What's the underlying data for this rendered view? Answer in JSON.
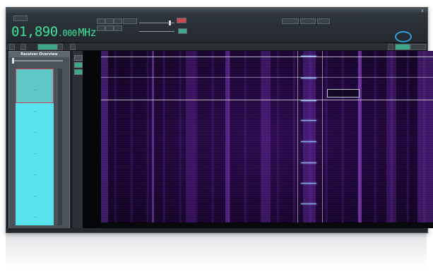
{
  "window": {
    "title": "",
    "close_glyph": "x"
  },
  "frequency": {
    "main": "01,890",
    "fine": ".000",
    "unit": "MHz"
  },
  "toolbar": {
    "buttons": [
      "",
      "",
      "",
      "",
      "",
      "",
      ""
    ]
  },
  "tabs": [
    {
      "label": "",
      "active": false
    },
    {
      "label": "",
      "active": false
    },
    {
      "label": "",
      "active": true
    },
    {
      "label": "",
      "active": false
    },
    {
      "label": "",
      "active": false
    }
  ],
  "right_tabs": [
    {
      "label": "",
      "active": false
    },
    {
      "label": "",
      "active": true
    },
    {
      "label": "",
      "active": false
    }
  ],
  "left_panel": {
    "header": "Receiver Overview"
  },
  "colors": {
    "accent": "#3fa88a",
    "freq_text": "#3de29a",
    "meter_fill": "#58e3ee",
    "meter_top": "#5fc7c5",
    "waterfall_bg": "#1a0630",
    "waterfall_signal": "#8a3be0",
    "marker": "#7fb6f0"
  }
}
